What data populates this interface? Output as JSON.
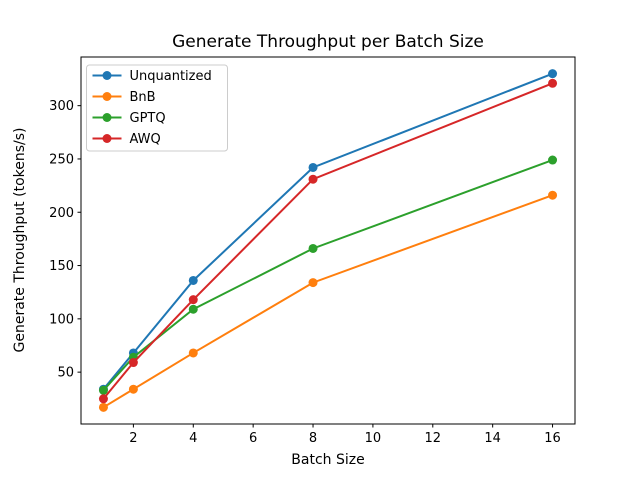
{
  "window": {
    "background": "#ffffff"
  },
  "chart_data": {
    "type": "line",
    "title": "Generate Throughput per Batch Size",
    "xlabel": "Batch Size",
    "ylabel": "Generate Throughput (tokens/s)",
    "x": [
      1,
      2,
      4,
      8,
      16
    ],
    "series": [
      {
        "name": "Unquantized",
        "color": "#1f77b4",
        "values": [
          34,
          68,
          136,
          242,
          330
        ]
      },
      {
        "name": "BnB",
        "color": "#ff7f0e",
        "values": [
          17,
          34,
          68,
          134,
          216
        ]
      },
      {
        "name": "GPTQ",
        "color": "#2ca02c",
        "values": [
          33,
          64,
          109,
          166,
          249
        ]
      },
      {
        "name": "AWQ",
        "color": "#d62728",
        "values": [
          25,
          59,
          118,
          231,
          321
        ]
      }
    ],
    "xticks": [
      2,
      4,
      6,
      8,
      10,
      12,
      14,
      16
    ],
    "yticks": [
      50,
      100,
      150,
      200,
      250,
      300
    ],
    "xlim": [
      0.25,
      16.75
    ],
    "ylim": [
      1.35,
      345.65
    ],
    "grid": false,
    "legend_position": "upper left",
    "marker": "circle",
    "line_width": 2,
    "marker_radius": 4.5,
    "axis_color": "#000000",
    "legend_border_color": "#cccccc",
    "text_color": "#000000"
  }
}
